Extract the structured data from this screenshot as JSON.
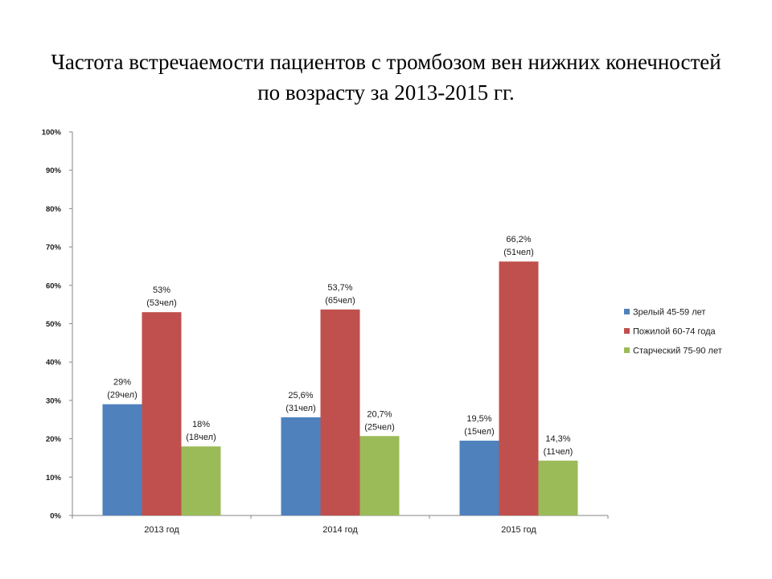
{
  "title": "Частота встречаемости пациентов с тромбозом вен нижних конечностей по возрасту за 2013-2015 гг.",
  "chart_data": {
    "type": "bar",
    "categories": [
      "2013 год",
      "2014 год",
      "2015 год"
    ],
    "series": [
      {
        "name": "Зрелый 45-59 лет",
        "color": "#4F81BD",
        "values": [
          29,
          25.6,
          19.5
        ],
        "labels": [
          [
            "29%",
            "(29чел)"
          ],
          [
            "25,6%",
            "(31чел)"
          ],
          [
            "19,5%",
            "(15чел)"
          ]
        ]
      },
      {
        "name": "Пожилой 60-74 года",
        "color": "#C0504D",
        "values": [
          53,
          53.7,
          66.2
        ],
        "labels": [
          [
            "53%",
            "(53чел)"
          ],
          [
            "53,7%",
            "(65чел)"
          ],
          [
            "66,2%",
            "(51чел)"
          ]
        ]
      },
      {
        "name": "Старческий 75-90 лет",
        "color": "#9BBB59",
        "values": [
          18,
          20.7,
          14.3
        ],
        "labels": [
          [
            "18%",
            "(18чел)"
          ],
          [
            "20,7%",
            "(25чел)"
          ],
          [
            "14,3%",
            "(11чел)"
          ]
        ]
      }
    ],
    "ylim": [
      0,
      100
    ],
    "yticks": [
      "0%",
      "10%",
      "20%",
      "30%",
      "40%",
      "50%",
      "60%",
      "70%",
      "80%",
      "90%",
      "100%"
    ],
    "xlabel": "",
    "ylabel": "",
    "grid": false,
    "legend_position": "right"
  }
}
